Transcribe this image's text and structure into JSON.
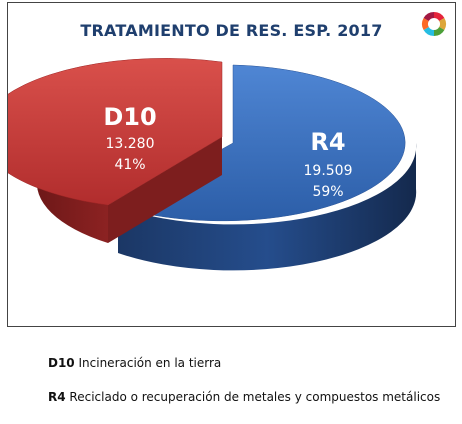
{
  "chart_data": {
    "type": "pie",
    "title": "TRATAMIENTO DE RES. ESP. 2017",
    "slices": [
      {
        "code": "R4",
        "value": "19.509",
        "percent": "59%",
        "fraction": 0.595,
        "color": "#3a6fbf",
        "side_color": "#1d3f73"
      },
      {
        "code": "D10",
        "value": "13.280",
        "percent": "41%",
        "fraction": 0.405,
        "color": "#c53a3a",
        "side_color": "#7a1c1c"
      }
    ]
  },
  "legend": [
    {
      "code": "D10",
      "text": "Incineración en la tierra"
    },
    {
      "code": "R4",
      "text": "Reciclado o recuperación de metales y compuestos metálicos"
    }
  ]
}
